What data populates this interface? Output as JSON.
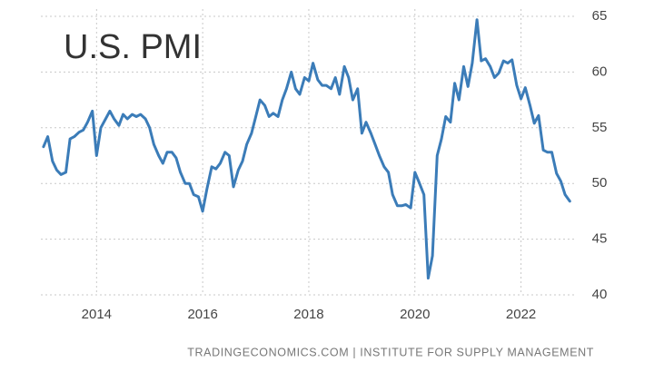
{
  "chart_data": {
    "type": "line",
    "title": "U.S. PMI",
    "source": "TRADINGECONOMICS.COM | INSTITUTE FOR SUPPLY MANAGEMENT",
    "color": "#3b7cb8",
    "grid": true,
    "xlim": [
      2012.95,
      2023
    ],
    "xticks": [
      2014,
      2016,
      2018,
      2020,
      2022
    ],
    "ylim": [
      40,
      65
    ],
    "yticks": [
      40,
      45,
      50,
      55,
      60,
      65
    ],
    "x": [
      2013,
      2013.08,
      2013.17,
      2013.25,
      2013.33,
      2013.42,
      2013.5,
      2013.58,
      2013.67,
      2013.75,
      2013.83,
      2013.92,
      2014,
      2014.08,
      2014.17,
      2014.25,
      2014.33,
      2014.42,
      2014.5,
      2014.58,
      2014.67,
      2014.75,
      2014.83,
      2014.92,
      2015,
      2015.08,
      2015.17,
      2015.25,
      2015.33,
      2015.42,
      2015.5,
      2015.58,
      2015.67,
      2015.75,
      2015.83,
      2015.92,
      2016,
      2016.08,
      2016.17,
      2016.25,
      2016.33,
      2016.42,
      2016.5,
      2016.58,
      2016.67,
      2016.75,
      2016.83,
      2016.92,
      2017,
      2017.08,
      2017.17,
      2017.25,
      2017.33,
      2017.42,
      2017.5,
      2017.58,
      2017.67,
      2017.75,
      2017.83,
      2017.92,
      2018,
      2018.08,
      2018.17,
      2018.25,
      2018.33,
      2018.42,
      2018.5,
      2018.58,
      2018.67,
      2018.75,
      2018.83,
      2018.92,
      2019,
      2019.08,
      2019.17,
      2019.25,
      2019.33,
      2019.42,
      2019.5,
      2019.58,
      2019.67,
      2019.75,
      2019.83,
      2019.92,
      2020,
      2020.08,
      2020.17,
      2020.25,
      2020.33,
      2020.42,
      2020.5,
      2020.58,
      2020.67,
      2020.75,
      2020.83,
      2020.92,
      2021,
      2021.08,
      2021.17,
      2021.25,
      2021.33,
      2021.42,
      2021.5,
      2021.58,
      2021.67,
      2021.75,
      2021.83,
      2021.92,
      2022,
      2022.08,
      2022.17,
      2022.25,
      2022.33,
      2022.42,
      2022.5,
      2022.58,
      2022.67,
      2022.75,
      2022.83,
      2022.92
    ],
    "values": [
      53.3,
      54.2,
      52,
      51.2,
      50.8,
      51,
      54,
      54.2,
      54.6,
      54.8,
      55.5,
      56.5,
      52.5,
      55,
      55.8,
      56.5,
      55.8,
      55.2,
      56.2,
      55.8,
      56.2,
      56,
      56.2,
      55.8,
      55,
      53.5,
      52.5,
      51.8,
      52.8,
      52.8,
      52.3,
      51,
      50,
      50,
      49,
      48.8,
      47.5,
      49.5,
      51.5,
      51.3,
      51.8,
      52.8,
      52.5,
      49.7,
      51.2,
      52,
      53.5,
      54.5,
      56,
      57.5,
      57,
      56,
      56.3,
      56,
      57.5,
      58.5,
      60,
      58.5,
      58,
      59.5,
      59.2,
      60.8,
      59.3,
      58.8,
      58.8,
      58.5,
      59.5,
      58,
      60.5,
      59.5,
      57.5,
      58.5,
      54.5,
      55.5,
      54.5,
      53.5,
      52.5,
      51.5,
      51,
      49,
      48,
      48,
      48.1,
      47.8,
      51,
      50.1,
      49,
      41.5,
      43.5,
      52.5,
      54,
      56,
      55.5,
      59,
      57.5,
      60.5,
      58.7,
      60.8,
      64.7,
      61,
      61.2,
      60.5,
      59.5,
      59.9,
      61,
      60.8,
      61.1,
      58.8,
      57.6,
      58.6,
      57,
      55.4,
      56.1,
      53,
      52.8,
      52.8,
      50.9,
      50.2,
      49,
      48.4
    ]
  }
}
